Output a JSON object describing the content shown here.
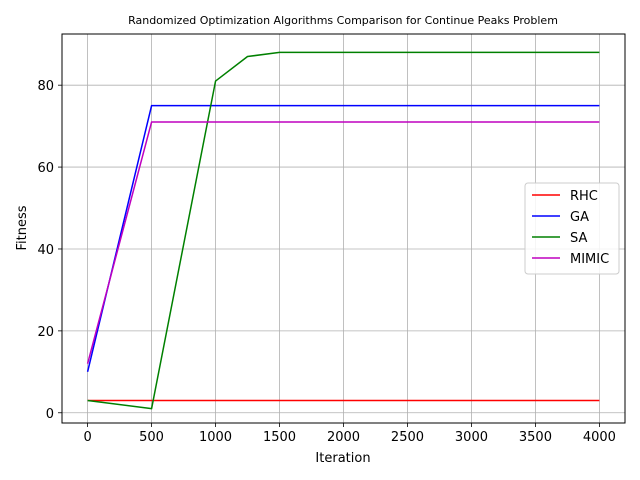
{
  "chart_data": {
    "type": "line",
    "title": "Randomized Optimization Algorithms Comparison for Continue Peaks Problem",
    "xlabel": "Iteration",
    "ylabel": "Fitness",
    "xlim": [
      -200,
      4200
    ],
    "ylim": [
      -2.5,
      92.5
    ],
    "xticks": [
      0,
      500,
      1000,
      1500,
      2000,
      2500,
      3000,
      3500,
      4000
    ],
    "yticks": [
      0,
      20,
      40,
      60,
      80
    ],
    "grid": true,
    "legend_position": "center-right",
    "series": [
      {
        "name": "RHC",
        "color": "#ff0000",
        "x": [
          0,
          500,
          1000,
          1500,
          2000,
          2500,
          3000,
          3500,
          4000
        ],
        "y": [
          3,
          3,
          3,
          3,
          3,
          3,
          3,
          3,
          3
        ]
      },
      {
        "name": "GA",
        "color": "#0000ff",
        "x": [
          0,
          500,
          1000,
          1500,
          2000,
          2500,
          3000,
          3500,
          4000
        ],
        "y": [
          10,
          75,
          75,
          75,
          75,
          75,
          75,
          75,
          75
        ]
      },
      {
        "name": "SA",
        "color": "#008000",
        "x": [
          0,
          500,
          1000,
          1250,
          1500,
          2000,
          2500,
          3000,
          3500,
          4000
        ],
        "y": [
          3,
          1,
          81,
          87,
          88,
          88,
          88,
          88,
          88,
          88
        ]
      },
      {
        "name": "MIMIC",
        "color": "#bf00bf",
        "x": [
          0,
          500,
          1000,
          1500,
          2000,
          2500,
          3000,
          3500,
          4000
        ],
        "y": [
          12,
          71,
          71,
          71,
          71,
          71,
          71,
          71,
          71
        ]
      }
    ]
  }
}
